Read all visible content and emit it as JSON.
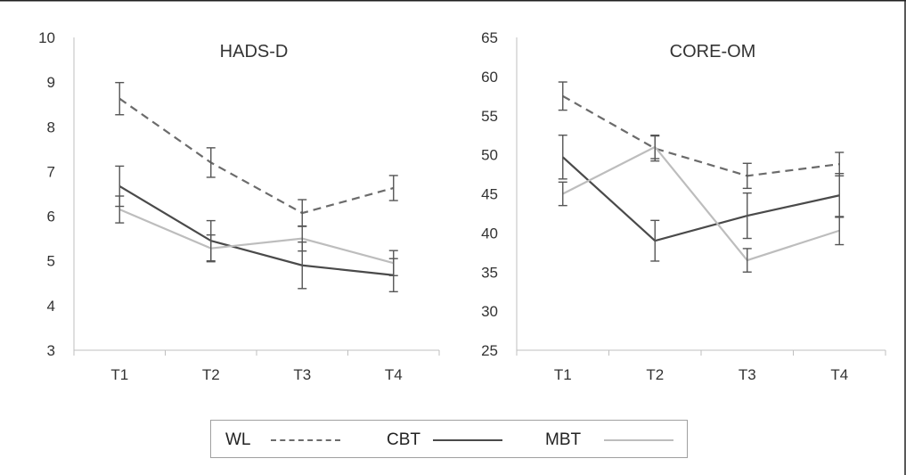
{
  "chart_data": [
    {
      "type": "line",
      "title": "HADS-D",
      "categories": [
        "T1",
        "T2",
        "T3",
        "T4"
      ],
      "ylim": [
        3,
        10
      ],
      "yticks": [
        3,
        4,
        5,
        6,
        7,
        8,
        9,
        10
      ],
      "grid": false,
      "series": [
        {
          "name": "WL",
          "values": [
            8.63,
            7.2,
            6.07,
            6.63
          ],
          "err": [
            0.36,
            0.33,
            0.3,
            0.28
          ]
        },
        {
          "name": "CBT",
          "values": [
            6.67,
            5.45,
            4.9,
            4.68
          ],
          "err": [
            0.45,
            0.45,
            0.52,
            0.37
          ]
        },
        {
          "name": "MBT",
          "values": [
            6.15,
            5.28,
            5.5,
            4.95
          ],
          "err": [
            0.3,
            0.3,
            0.28,
            0.28
          ]
        }
      ]
    },
    {
      "type": "line",
      "title": "CORE-OM",
      "categories": [
        "T1",
        "T2",
        "T3",
        "T4"
      ],
      "ylim": [
        25,
        65
      ],
      "yticks": [
        25,
        30,
        35,
        40,
        45,
        50,
        55,
        60,
        65
      ],
      "grid": false,
      "series": [
        {
          "name": "WL",
          "values": [
            57.5,
            50.8,
            47.3,
            48.8
          ],
          "err": [
            1.8,
            1.6,
            1.6,
            1.5
          ]
        },
        {
          "name": "CBT",
          "values": [
            49.7,
            39.0,
            42.2,
            44.8
          ],
          "err": [
            2.8,
            2.6,
            2.9,
            2.8
          ]
        },
        {
          "name": "MBT",
          "values": [
            45.0,
            51.0,
            36.5,
            40.3
          ],
          "err": [
            1.5,
            1.5,
            1.5,
            1.8
          ]
        }
      ]
    }
  ],
  "legend": {
    "position": "bottom",
    "items": [
      {
        "label": "WL",
        "color": "#6b6b6b",
        "dashed": true
      },
      {
        "label": "CBT",
        "color": "#4a4a4a",
        "dashed": false
      },
      {
        "label": "MBT",
        "color": "#bdbdbd",
        "dashed": false
      }
    ]
  },
  "colors": {
    "axis": "#bfbfbf",
    "text": "#333333",
    "border": "#222222"
  }
}
